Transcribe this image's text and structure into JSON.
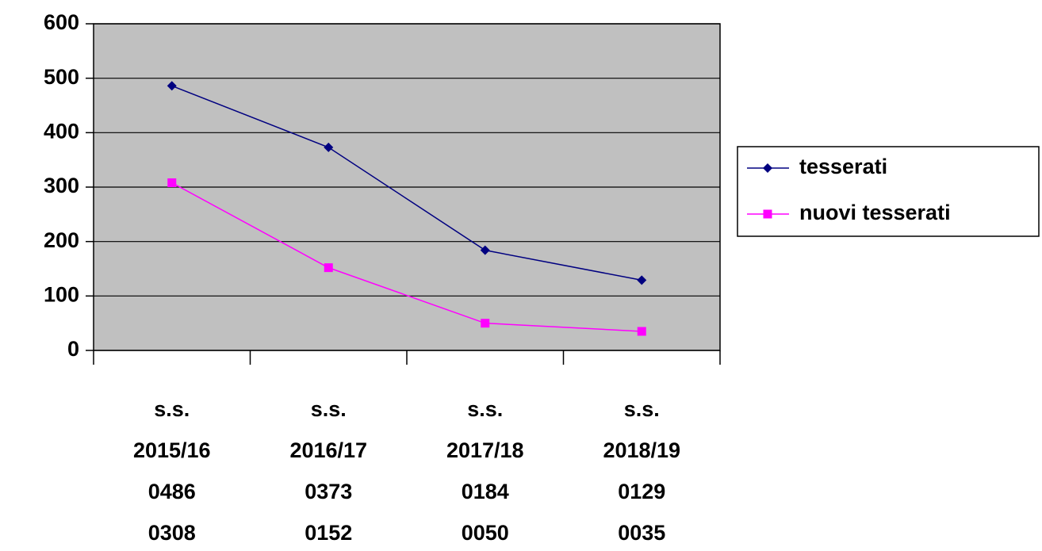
{
  "chart_data": {
    "type": "line",
    "categories": [
      [
        "s.s.",
        "2015/16",
        "0486",
        "0308"
      ],
      [
        "s.s.",
        "2016/17",
        "0373",
        "0152"
      ],
      [
        "s.s.",
        "2017/18",
        "0184",
        "0050"
      ],
      [
        "s.s.",
        "2018/19",
        "0129",
        "0035"
      ]
    ],
    "series": [
      {
        "name": "tesserati",
        "color": "#000080",
        "marker": "diamond",
        "values": [
          486,
          373,
          184,
          129
        ]
      },
      {
        "name": "nuovi tesserati",
        "color": "#ff00ff",
        "marker": "square",
        "values": [
          308,
          152,
          50,
          35
        ]
      }
    ],
    "ylim": [
      0,
      600
    ],
    "yticks": [
      0,
      100,
      200,
      300,
      400,
      500,
      600
    ],
    "grid": true,
    "legend": "right"
  }
}
